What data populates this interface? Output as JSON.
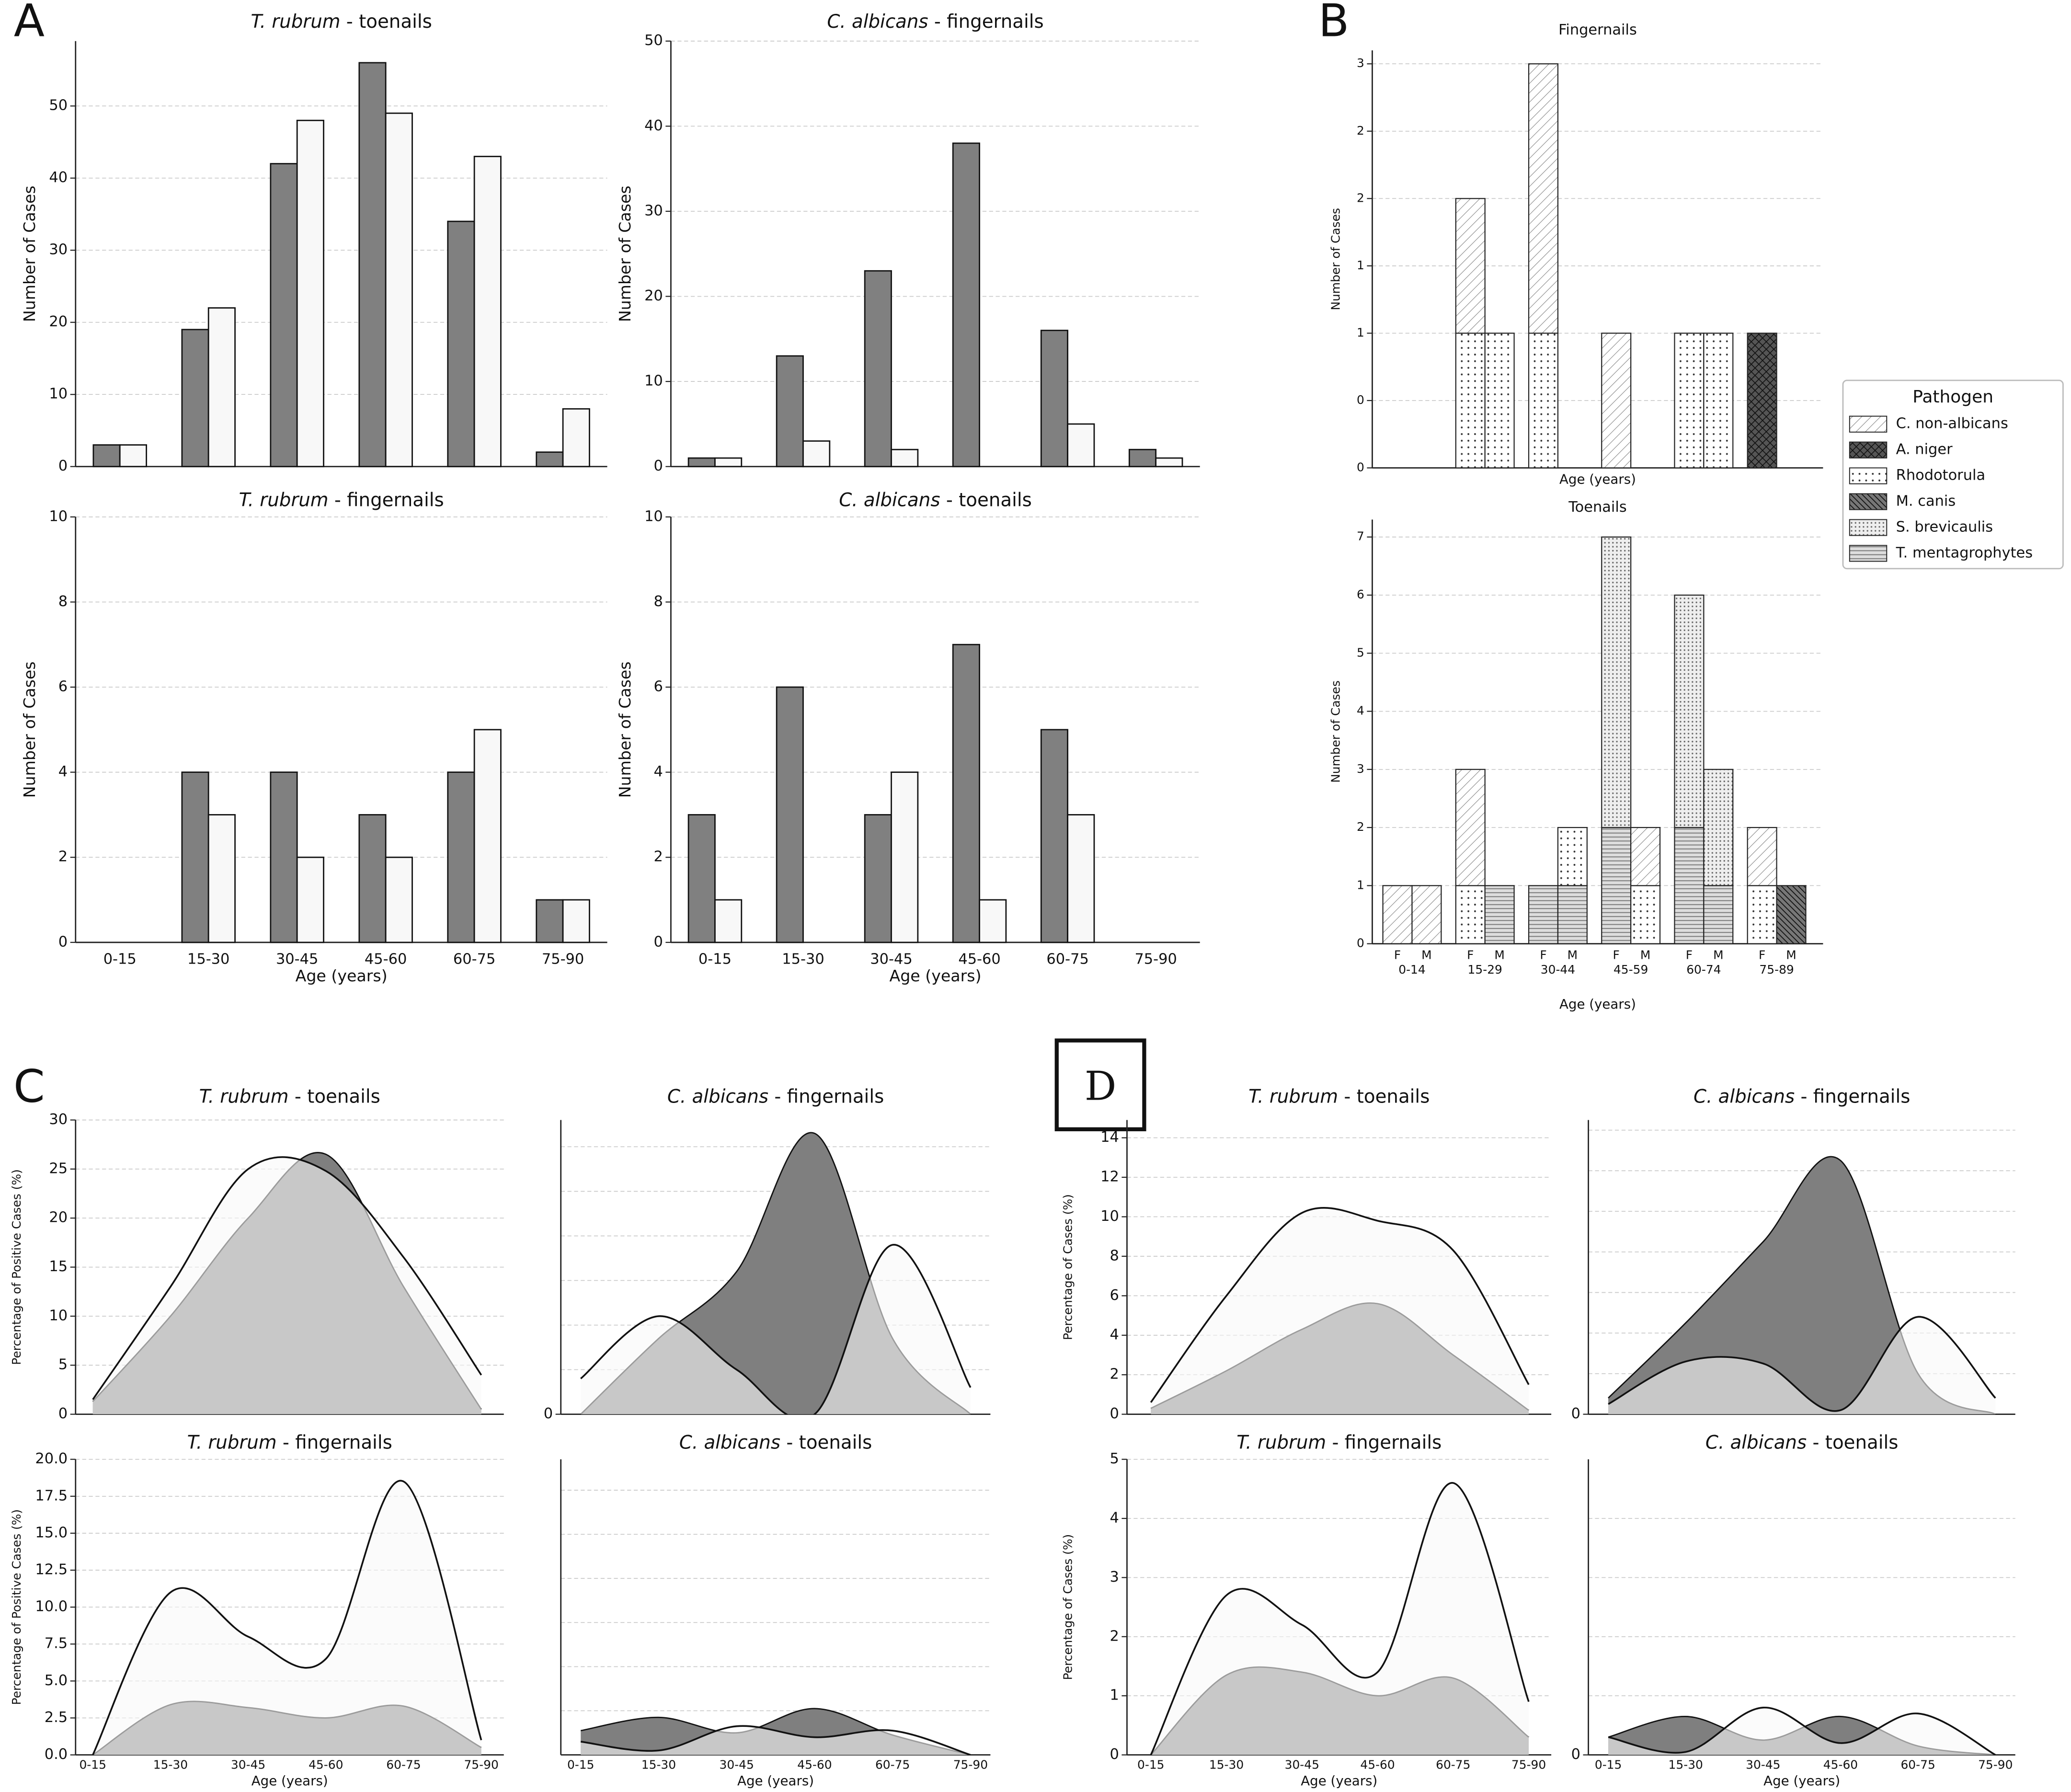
{
  "panels": [
    "A",
    "B",
    "C",
    "D"
  ],
  "chart_data": [
    {
      "type": "bar",
      "title_parts": [
        "T. rubrum",
        " - toenails"
      ],
      "ylabel": "Number of Cases",
      "ylim": [
        0,
        59
      ],
      "yticks": [
        0,
        10,
        20,
        30,
        40,
        50
      ],
      "grid": true,
      "series": [
        {
          "color": "#808080",
          "values": [
            3,
            19,
            42,
            56,
            34,
            2
          ]
        },
        {
          "color": "#f8f8f8",
          "values": [
            3,
            22,
            48,
            49,
            43,
            8
          ]
        }
      ]
    },
    {
      "type": "bar",
      "title_parts": [
        "C. albicans",
        " - fingernails"
      ],
      "ylabel": "Number of Cases",
      "ylim": [
        0,
        50
      ],
      "yticks": [
        0,
        10,
        20,
        30,
        40,
        50
      ],
      "grid": true,
      "series": [
        {
          "color": "#808080",
          "values": [
            1,
            13,
            23,
            38,
            16,
            2
          ]
        },
        {
          "color": "#f8f8f8",
          "values": [
            1,
            3,
            2,
            0,
            5,
            1
          ]
        }
      ]
    },
    {
      "type": "bar",
      "title_parts": [
        "T. rubrum",
        " - fingernails"
      ],
      "ylabel": "Number of Cases",
      "xlabel": "Age (years)",
      "categories": [
        "0-15",
        "15-30",
        "30-45",
        "45-60",
        "60-75",
        "75-90"
      ],
      "ylim": [
        0,
        10
      ],
      "yticks": [
        0,
        2,
        4,
        6,
        8,
        10
      ],
      "grid": true,
      "series": [
        {
          "color": "#808080",
          "values": [
            0,
            4,
            4,
            3,
            4,
            1
          ]
        },
        {
          "color": "#f8f8f8",
          "values": [
            0,
            3,
            2,
            2,
            5,
            1
          ]
        }
      ]
    },
    {
      "type": "bar",
      "title_parts": [
        "C. albicans",
        " - toenails"
      ],
      "ylabel": "Number of Cases",
      "xlabel": "Age (years)",
      "categories": [
        "0-15",
        "15-30",
        "30-45",
        "45-60",
        "60-75",
        "75-90"
      ],
      "ylim": [
        0,
        10
      ],
      "yticks": [
        0,
        2,
        4,
        6,
        8,
        10
      ],
      "grid": true,
      "series": [
        {
          "color": "#808080",
          "values": [
            3,
            6,
            3,
            7,
            5,
            0
          ]
        },
        {
          "color": "#f8f8f8",
          "values": [
            1,
            0,
            4,
            1,
            3,
            0
          ]
        }
      ]
    },
    {
      "type": "bar",
      "stacked": true,
      "title": "Fingernails",
      "ylabel": "Number of Cases",
      "xlabel": "Age (years)",
      "ylim": [
        0,
        3.1
      ],
      "yticks": [
        0,
        {
          "value": 0.5,
          "label": "0"
        },
        1,
        {
          "value": 1.5,
          "label": "1"
        },
        2,
        {
          "value": 2.5,
          "label": "2"
        },
        3
      ],
      "grid": true,
      "series": [
        {
          "pattern": "diagonal",
          "values": [
            0,
            0,
            1,
            0,
            2,
            0,
            1,
            0,
            0,
            0,
            0,
            0
          ]
        },
        {
          "pattern": "cross",
          "values": [
            0,
            0,
            0,
            0,
            0,
            0,
            0,
            0,
            0,
            0,
            1,
            0
          ]
        },
        {
          "pattern": "dots",
          "values": [
            0,
            0,
            1,
            1,
            1,
            0,
            0,
            0,
            1,
            1,
            0,
            0
          ]
        }
      ]
    },
    {
      "type": "bar",
      "stacked": true,
      "title": "Toenails",
      "ylabel": "Number of Cases",
      "xlabel": "Age (years)",
      "categories": [
        "F",
        "M",
        "F",
        "M",
        "F",
        "M",
        "F",
        "M",
        "F",
        "M",
        "F",
        "M"
      ],
      "groups": [
        "0-14",
        "15-29",
        "30-44",
        "45-59",
        "60-74",
        "75-89"
      ],
      "ylim": [
        0,
        7.3
      ],
      "yticks": [
        0,
        1,
        2,
        3,
        4,
        5,
        6,
        7
      ],
      "grid": true,
      "legend": "right",
      "legend_title": "Pathogen",
      "series": [
        {
          "name": "C. non-albicans",
          "pattern": "diagonal",
          "values": [
            1,
            1,
            2,
            0,
            0,
            0,
            0,
            1,
            0,
            0,
            1,
            0
          ]
        },
        {
          "name": "A. niger",
          "pattern": "cross",
          "values": [
            0,
            0,
            0,
            0,
            0,
            0,
            0,
            0,
            0,
            0,
            0,
            0
          ]
        },
        {
          "name": "Rhodotorula",
          "pattern": "dots",
          "values": [
            0,
            0,
            1,
            0,
            0,
            1,
            0,
            1,
            0,
            0,
            1,
            0
          ]
        },
        {
          "name": "M. canis",
          "pattern": "dense",
          "values": [
            0,
            0,
            0,
            0,
            0,
            0,
            0,
            0,
            0,
            0,
            0,
            1
          ]
        },
        {
          "name": "S. brevicaulis",
          "pattern": "stipple",
          "values": [
            0,
            0,
            0,
            0,
            0,
            0,
            5,
            0,
            4,
            2,
            0,
            0
          ]
        },
        {
          "name": "T. mentagrophytes",
          "pattern": "hlines",
          "values": [
            0,
            0,
            0,
            1,
            1,
            1,
            2,
            0,
            2,
            1,
            0,
            0
          ]
        }
      ]
    },
    {
      "type": "area",
      "title_parts": [
        "T. rubrum",
        " - toenails"
      ],
      "ylabel": "Percentage of Positive Cases (%)",
      "ylim": [
        0,
        30
      ],
      "yticks": [
        0,
        5,
        10,
        15,
        20,
        25,
        30
      ],
      "grid": true,
      "series": [
        {
          "color": "#7f7f7f",
          "values": [
            1.3,
            10,
            20,
            26.5,
            13,
            0.5
          ]
        },
        {
          "color": "#f8f8f8",
          "values": [
            1.5,
            13,
            25,
            24.8,
            16,
            4
          ]
        }
      ]
    },
    {
      "type": "area",
      "title_parts": [
        "C. albicans",
        " - fingernails"
      ],
      "ylim": [
        0,
        33
      ],
      "yticks": [
        0
      ],
      "ygrid": [
        5,
        10,
        15,
        20,
        25,
        30
      ],
      "grid": true,
      "series": [
        {
          "color": "#7f7f7f",
          "values": [
            0,
            8.5,
            16,
            31.5,
            8.5,
            0
          ]
        },
        {
          "color": "#f8f8f8",
          "values": [
            4,
            11,
            5,
            0,
            19,
            3
          ]
        }
      ]
    },
    {
      "type": "area",
      "title_parts": [
        "T. rubrum",
        " - fingernails"
      ],
      "ylabel": "Percentage of Positive Cases (%)",
      "xlabel": "Age (years)",
      "categories": [
        "0-15",
        "15-30",
        "30-45",
        "45-60",
        "60-75",
        "75-90"
      ],
      "ylim": [
        0,
        20
      ],
      "yticks": [
        {
          "value": 0,
          "label": "0.0"
        },
        2.5,
        {
          "value": 5,
          "label": "5.0"
        },
        7.5,
        {
          "value": 10,
          "label": "10.0"
        },
        12.5,
        {
          "value": 15,
          "label": "15.0"
        },
        17.5,
        {
          "value": 20,
          "label": "20.0"
        }
      ],
      "grid": true,
      "series": [
        {
          "color": "#7f7f7f",
          "values": [
            0,
            3.4,
            3.2,
            2.5,
            3.3,
            0.5
          ]
        },
        {
          "color": "#f8f8f8",
          "values": [
            0,
            11,
            8,
            6.5,
            18.5,
            1
          ]
        }
      ]
    },
    {
      "type": "area",
      "title_parts": [
        "C. albicans",
        " - toenails"
      ],
      "xlabel": "Age (years)",
      "categories": [
        "0-15",
        "15-30",
        "30-45",
        "45-60",
        "60-75",
        "75-90"
      ],
      "ylim": [
        0,
        6.7
      ],
      "ygrid": [
        1,
        2,
        3,
        4,
        5,
        6
      ],
      "grid": true,
      "series": [
        {
          "color": "#7f7f7f",
          "values": [
            0.55,
            0.85,
            0.5,
            1.05,
            0.45,
            0
          ]
        },
        {
          "color": "#f8f8f8",
          "values": [
            0.3,
            0.1,
            0.65,
            0.4,
            0.55,
            0
          ]
        }
      ]
    },
    {
      "type": "area",
      "title_parts": [
        "T. rubrum",
        " - toenails"
      ],
      "ylabel": "Percentage of Cases (%)",
      "ylim": [
        0,
        14.9
      ],
      "yticks": [
        0,
        2,
        4,
        6,
        8,
        10,
        12,
        14
      ],
      "grid": true,
      "series": [
        {
          "color": "#7f7f7f",
          "values": [
            0.3,
            2.2,
            4.3,
            5.6,
            3,
            0.2
          ]
        },
        {
          "color": "#f8f8f8",
          "values": [
            0.6,
            6,
            10.2,
            9.8,
            8.3,
            1.5
          ]
        }
      ]
    },
    {
      "type": "area",
      "title_parts": [
        "C. albicans",
        " - fingernails"
      ],
      "ylim": [
        0,
        14.5
      ],
      "yticks": [
        0
      ],
      "ygrid": [
        2,
        4,
        6,
        8,
        10,
        12,
        14
      ],
      "grid": true,
      "series": [
        {
          "color": "#7f7f7f",
          "values": [
            0.8,
            4.5,
            8.5,
            12.5,
            2,
            0
          ]
        },
        {
          "color": "#f8f8f8",
          "values": [
            0.5,
            2.6,
            2.5,
            0.2,
            4.8,
            0.8
          ]
        }
      ]
    },
    {
      "type": "area",
      "title_parts": [
        "T. rubrum",
        " - fingernails"
      ],
      "ylabel": "Percentage of Cases (%)",
      "xlabel": "Age (years)",
      "categories": [
        "0-15",
        "15-30",
        "30-45",
        "45-60",
        "60-75",
        "75-90"
      ],
      "ylim": [
        0,
        5
      ],
      "yticks": [
        0,
        1,
        2,
        3,
        4,
        5
      ],
      "grid": true,
      "series": [
        {
          "color": "#7f7f7f",
          "values": [
            0,
            1.35,
            1.4,
            1,
            1.3,
            0.3
          ]
        },
        {
          "color": "#f8f8f8",
          "values": [
            0,
            2.7,
            2.2,
            1.4,
            4.6,
            0.9
          ]
        }
      ]
    },
    {
      "type": "area",
      "title_parts": [
        "C. albicans",
        " - toenails"
      ],
      "xlabel": "Age (years)",
      "categories": [
        "0-15",
        "15-30",
        "30-45",
        "45-60",
        "60-75",
        "75-90"
      ],
      "ylim": [
        0,
        5
      ],
      "yticks": [
        0
      ],
      "ygrid": [
        1,
        2,
        3,
        4
      ],
      "grid": true,
      "series": [
        {
          "color": "#7f7f7f",
          "values": [
            0.3,
            0.65,
            0.25,
            0.65,
            0.15,
            0
          ]
        },
        {
          "color": "#f8f8f8",
          "values": [
            0.3,
            0.05,
            0.8,
            0.2,
            0.7,
            0
          ]
        }
      ]
    }
  ]
}
